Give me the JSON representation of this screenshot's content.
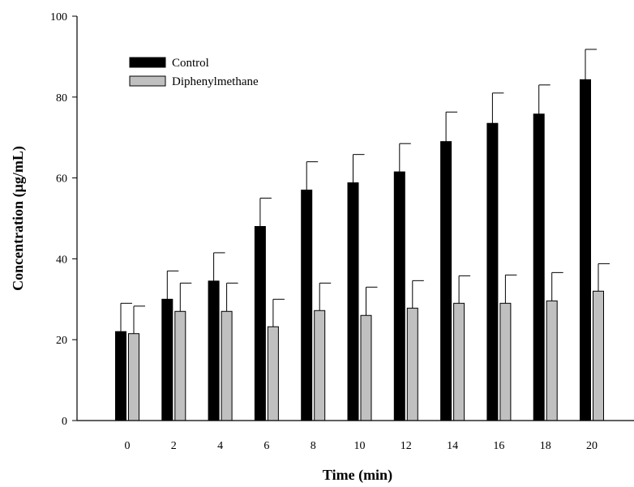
{
  "chart_data": {
    "type": "bar",
    "title": "",
    "xlabel": "Time (min)",
    "ylabel": "Concentration (µg/mL)",
    "categories": [
      "0",
      "2",
      "4",
      "6",
      "8",
      "10",
      "12",
      "14",
      "16",
      "18",
      "20"
    ],
    "ylim": [
      0,
      100
    ],
    "yticks": [
      "0",
      "20",
      "40",
      "60",
      "80",
      "100"
    ],
    "legend_position": "top-left",
    "grid": false,
    "series": [
      {
        "name": "Control",
        "color": "#000000",
        "values": [
          22,
          30,
          34.5,
          48,
          57,
          58.8,
          61.5,
          69,
          73.5,
          75.8,
          84.3
        ],
        "errors": [
          7,
          7,
          7,
          7,
          7,
          7,
          7,
          7.3,
          7.5,
          7.2,
          7.5
        ]
      },
      {
        "name": "Diphenylmethane",
        "color": "#c0c0c0",
        "values": [
          21.5,
          27,
          27,
          23.2,
          27.2,
          26,
          27.8,
          29,
          29,
          29.6,
          32
        ],
        "errors": [
          6.8,
          7,
          7,
          6.8,
          6.8,
          7,
          6.8,
          6.8,
          7,
          7,
          6.8
        ]
      }
    ]
  }
}
